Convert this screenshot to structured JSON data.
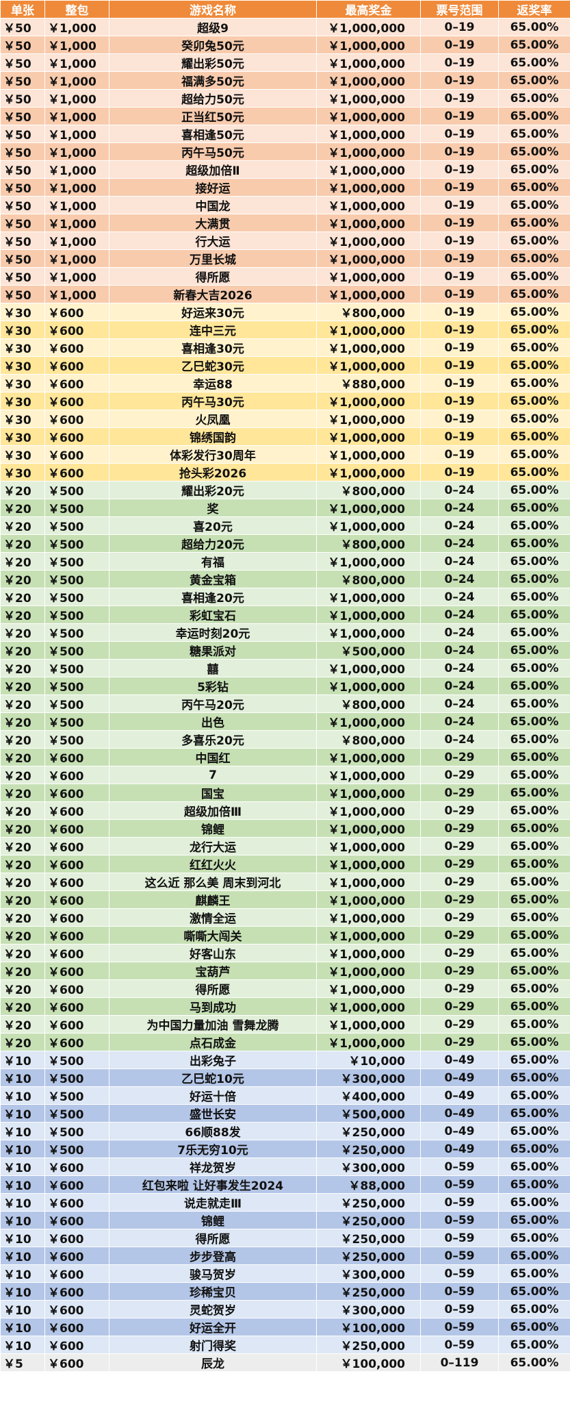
{
  "table": {
    "header": [
      "单张",
      "整包",
      "游戏名称",
      "最高奖金",
      "票号范围",
      "返奖率"
    ],
    "rows": [
      [
        "￥50",
        "￥1,000",
        "超级9",
        "￥1,000,000",
        "0–19",
        "65.00%"
      ],
      [
        "￥50",
        "￥1,000",
        "癸卯兔50元",
        "￥1,000,000",
        "0–19",
        "65.00%"
      ],
      [
        "￥50",
        "￥1,000",
        "耀出彩50元",
        "￥1,000,000",
        "0–19",
        "65.00%"
      ],
      [
        "￥50",
        "￥1,000",
        "福满多50元",
        "￥1,000,000",
        "0–19",
        "65.00%"
      ],
      [
        "￥50",
        "￥1,000",
        "超给力50元",
        "￥1,000,000",
        "0–19",
        "65.00%"
      ],
      [
        "￥50",
        "￥1,000",
        "正当红50元",
        "￥1,000,000",
        "0–19",
        "65.00%"
      ],
      [
        "￥50",
        "￥1,000",
        "喜相逢50元",
        "￥1,000,000",
        "0–19",
        "65.00%"
      ],
      [
        "￥50",
        "￥1,000",
        "丙午马50元",
        "￥1,000,000",
        "0–19",
        "65.00%"
      ],
      [
        "￥50",
        "￥1,000",
        "超级加倍Ⅱ",
        "￥1,000,000",
        "0–19",
        "65.00%"
      ],
      [
        "￥50",
        "￥1,000",
        "接好运",
        "￥1,000,000",
        "0–19",
        "65.00%"
      ],
      [
        "￥50",
        "￥1,000",
        "中国龙",
        "￥1,000,000",
        "0–19",
        "65.00%"
      ],
      [
        "￥50",
        "￥1,000",
        "大满贯",
        "￥1,000,000",
        "0–19",
        "65.00%"
      ],
      [
        "￥50",
        "￥1,000",
        "行大运",
        "￥1,000,000",
        "0–19",
        "65.00%"
      ],
      [
        "￥50",
        "￥1,000",
        "万里长城",
        "￥1,000,000",
        "0–19",
        "65.00%"
      ],
      [
        "￥50",
        "￥1,000",
        "得所愿",
        "￥1,000,000",
        "0–19",
        "65.00%"
      ],
      [
        "￥50",
        "￥1,000",
        "新春大吉2026",
        "￥1,000,000",
        "0–19",
        "65.00%"
      ],
      [
        "￥30",
        "￥600",
        "好运来30元",
        "￥800,000",
        "0–19",
        "65.00%"
      ],
      [
        "￥30",
        "￥600",
        "连中三元",
        "￥1,000,000",
        "0–19",
        "65.00%"
      ],
      [
        "￥30",
        "￥600",
        "喜相逢30元",
        "￥1,000,000",
        "0–19",
        "65.00%"
      ],
      [
        "￥30",
        "￥600",
        "乙巳蛇30元",
        "￥1,000,000",
        "0–19",
        "65.00%"
      ],
      [
        "￥30",
        "￥600",
        "幸运88",
        "￥880,000",
        "0–19",
        "65.00%"
      ],
      [
        "￥30",
        "￥600",
        "丙午马30元",
        "￥1,000,000",
        "0–19",
        "65.00%"
      ],
      [
        "￥30",
        "￥600",
        "火凤凰",
        "￥1,000,000",
        "0–19",
        "65.00%"
      ],
      [
        "￥30",
        "￥600",
        "锦绣国韵",
        "￥1,000,000",
        "0–19",
        "65.00%"
      ],
      [
        "￥30",
        "￥600",
        "体彩发行30周年",
        "￥1,000,000",
        "0–19",
        "65.00%"
      ],
      [
        "￥30",
        "￥600",
        "抢头彩2026",
        "￥1,000,000",
        "0–19",
        "65.00%"
      ],
      [
        "￥20",
        "￥500",
        "耀出彩20元",
        "￥800,000",
        "0–24",
        "65.00%"
      ],
      [
        "￥20",
        "￥500",
        "奖",
        "￥1,000,000",
        "0–24",
        "65.00%"
      ],
      [
        "￥20",
        "￥500",
        "喜20元",
        "￥1,000,000",
        "0–24",
        "65.00%"
      ],
      [
        "￥20",
        "￥500",
        "超给力20元",
        "￥800,000",
        "0–24",
        "65.00%"
      ],
      [
        "￥20",
        "￥500",
        "有福",
        "￥1,000,000",
        "0–24",
        "65.00%"
      ],
      [
        "￥20",
        "￥500",
        "黄金宝箱",
        "￥800,000",
        "0–24",
        "65.00%"
      ],
      [
        "￥20",
        "￥500",
        "喜相逢20元",
        "￥1,000,000",
        "0–24",
        "65.00%"
      ],
      [
        "￥20",
        "￥500",
        "彩虹宝石",
        "￥1,000,000",
        "0–24",
        "65.00%"
      ],
      [
        "￥20",
        "￥500",
        "幸运时刻20元",
        "￥1,000,000",
        "0–24",
        "65.00%"
      ],
      [
        "￥20",
        "￥500",
        "糖果派对",
        "￥500,000",
        "0–24",
        "65.00%"
      ],
      [
        "￥20",
        "￥500",
        "囍",
        "￥1,000,000",
        "0–24",
        "65.00%"
      ],
      [
        "￥20",
        "￥500",
        "5彩钻",
        "￥1,000,000",
        "0–24",
        "65.00%"
      ],
      [
        "￥20",
        "￥500",
        "丙午马20元",
        "￥800,000",
        "0–24",
        "65.00%"
      ],
      [
        "￥20",
        "￥500",
        "出色",
        "￥1,000,000",
        "0–24",
        "65.00%"
      ],
      [
        "￥20",
        "￥500",
        "多喜乐20元",
        "￥800,000",
        "0–24",
        "65.00%"
      ],
      [
        "￥20",
        "￥600",
        "中国红",
        "￥1,000,000",
        "0–29",
        "65.00%"
      ],
      [
        "￥20",
        "￥600",
        "7",
        "￥1,000,000",
        "0–29",
        "65.00%"
      ],
      [
        "￥20",
        "￥600",
        "国宝",
        "￥1,000,000",
        "0–29",
        "65.00%"
      ],
      [
        "￥20",
        "￥600",
        "超级加倍Ⅲ",
        "￥1,000,000",
        "0–29",
        "65.00%"
      ],
      [
        "￥20",
        "￥600",
        "锦鲤",
        "￥1,000,000",
        "0–29",
        "65.00%"
      ],
      [
        "￥20",
        "￥600",
        "龙行大运",
        "￥1,000,000",
        "0–29",
        "65.00%"
      ],
      [
        "￥20",
        "￥600",
        "红红火火",
        "￥1,000,000",
        "0–29",
        "65.00%"
      ],
      [
        "￥20",
        "￥600",
        "这么近 那么美 周末到河北",
        "￥1,000,000",
        "0–29",
        "65.00%"
      ],
      [
        "￥20",
        "￥600",
        "麒麟王",
        "￥1,000,000",
        "0–29",
        "65.00%"
      ],
      [
        "￥20",
        "￥600",
        "激情全运",
        "￥1,000,000",
        "0–29",
        "65.00%"
      ],
      [
        "￥20",
        "￥600",
        "嘶嘶大闯关",
        "￥1,000,000",
        "0–29",
        "65.00%"
      ],
      [
        "￥20",
        "￥600",
        "好客山东",
        "￥1,000,000",
        "0–29",
        "65.00%"
      ],
      [
        "￥20",
        "￥600",
        "宝葫芦",
        "￥1,000,000",
        "0–29",
        "65.00%"
      ],
      [
        "￥20",
        "￥600",
        "得所愿",
        "￥1,000,000",
        "0–29",
        "65.00%"
      ],
      [
        "￥20",
        "￥600",
        "马到成功",
        "￥1,000,000",
        "0–29",
        "65.00%"
      ],
      [
        "￥20",
        "￥600",
        "为中国力量加油 雪舞龙腾",
        "￥1,000,000",
        "0–29",
        "65.00%"
      ],
      [
        "￥20",
        "￥600",
        "点石成金",
        "￥1,000,000",
        "0–29",
        "65.00%"
      ],
      [
        "￥10",
        "￥500",
        "出彩兔子",
        "￥10,000",
        "0–49",
        "65.00%"
      ],
      [
        "￥10",
        "￥500",
        "乙巳蛇10元",
        "￥300,000",
        "0–49",
        "65.00%"
      ],
      [
        "￥10",
        "￥500",
        "好运十倍",
        "￥400,000",
        "0–49",
        "65.00%"
      ],
      [
        "￥10",
        "￥500",
        "盛世长安",
        "￥500,000",
        "0–49",
        "65.00%"
      ],
      [
        "￥10",
        "￥500",
        "66顺88发",
        "￥250,000",
        "0–49",
        "65.00%"
      ],
      [
        "￥10",
        "￥500",
        "7乐无穷10元",
        "￥250,000",
        "0–49",
        "65.00%"
      ],
      [
        "￥10",
        "￥600",
        "祥龙贺岁",
        "￥300,000",
        "0–59",
        "65.00%"
      ],
      [
        "￥10",
        "￥600",
        "红包来啦 让好事发生2024",
        "￥88,000",
        "0–59",
        "65.00%"
      ],
      [
        "￥10",
        "￥600",
        "说走就走Ⅲ",
        "￥250,000",
        "0–59",
        "65.00%"
      ],
      [
        "￥10",
        "￥600",
        "锦鲤",
        "￥250,000",
        "0–59",
        "65.00%"
      ],
      [
        "￥10",
        "￥600",
        "得所愿",
        "￥250,000",
        "0–59",
        "65.00%"
      ],
      [
        "￥10",
        "￥600",
        "步步登高",
        "￥250,000",
        "0–59",
        "65.00%"
      ],
      [
        "￥10",
        "￥600",
        "骏马贺岁",
        "￥300,000",
        "0–59",
        "65.00%"
      ],
      [
        "￥10",
        "￥600",
        "珍稀宝贝",
        "￥250,000",
        "0–59",
        "65.00%"
      ],
      [
        "￥10",
        "￥600",
        "灵蛇贺岁",
        "￥300,000",
        "0–59",
        "65.00%"
      ],
      [
        "￥10",
        "￥600",
        "好运全开",
        "￥100,000",
        "0–59",
        "65.00%"
      ],
      [
        "￥10",
        "￥600",
        "射门得奖",
        "￥250,000",
        "0–59",
        "65.00%"
      ],
      [
        "￥5",
        "￥600",
        "辰龙",
        "￥100,000",
        "0–119",
        "65.00%"
      ]
    ]
  }
}
